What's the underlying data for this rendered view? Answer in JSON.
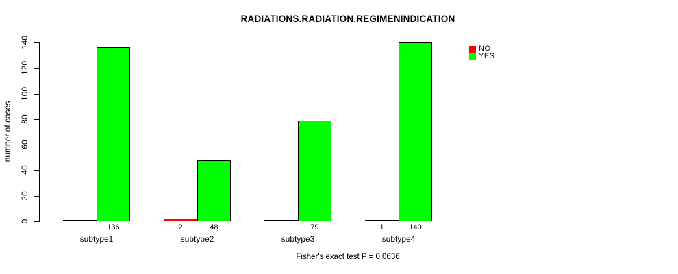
{
  "chart_data": {
    "type": "bar",
    "title": "RADIATIONS.RADIATION.REGIMENINDICATION",
    "ylabel": "number of cases",
    "xlabel": "",
    "categories": [
      "subtype1",
      "subtype2",
      "subtype3",
      "subtype4"
    ],
    "series": [
      {
        "name": "NO",
        "color": "#ff0000",
        "values": [
          0,
          2,
          0,
          1
        ],
        "bar_labels": [
          "",
          "2",
          "",
          "1"
        ]
      },
      {
        "name": "YES",
        "color": "#00ff00",
        "values": [
          136,
          48,
          79,
          140
        ],
        "bar_labels": [
          "136",
          "48",
          "79",
          "140"
        ]
      }
    ],
    "ylim": [
      0,
      140
    ],
    "yticks": [
      0,
      20,
      40,
      60,
      80,
      100,
      120,
      140
    ],
    "grid": false,
    "legend_position": "right",
    "bar_border_color": "#000000",
    "caption": "Fisher's exact test P = 0.0636"
  }
}
